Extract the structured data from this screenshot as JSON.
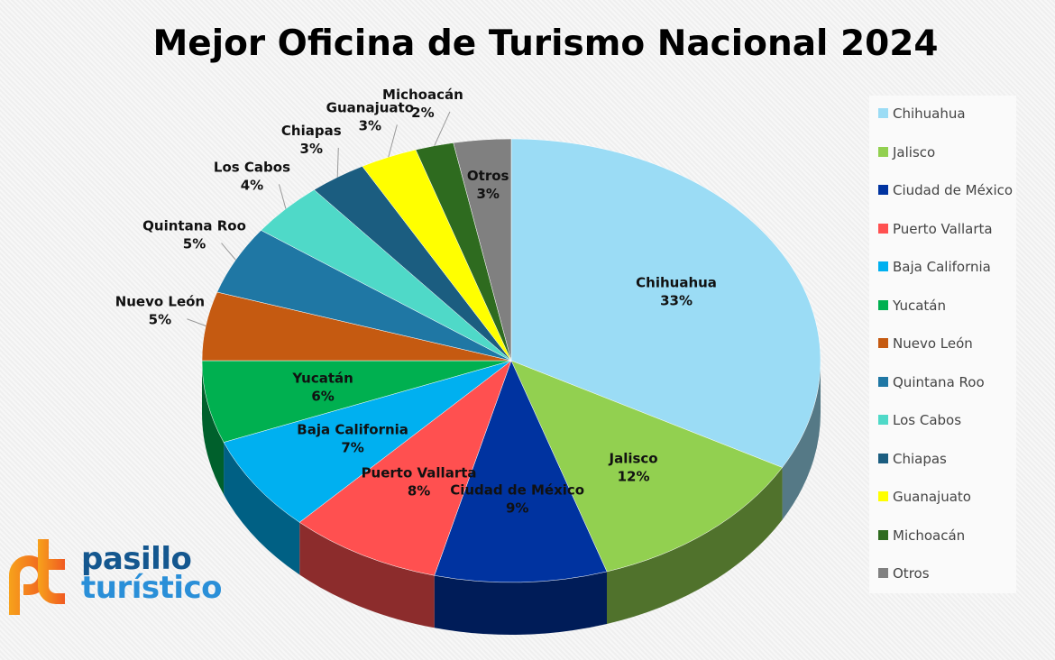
{
  "chart_data": {
    "type": "pie",
    "title": "Mejor Oficina de Turismo Nacional 2024",
    "categories": [
      "Chihuahua",
      "Jalisco",
      "Ciudad de México",
      "Puerto Vallarta",
      "Baja California",
      "Yucatán",
      "Nuevo León",
      "Quintana Roo",
      "Los Cabos",
      "Chiapas",
      "Guanajuato",
      "Michoacán",
      "Otros"
    ],
    "values": [
      33,
      12,
      9,
      8,
      7,
      6,
      5,
      5,
      4,
      3,
      3,
      2,
      3
    ],
    "labels": [
      "33%",
      "12%",
      "9%",
      "8%",
      "7%",
      "6%",
      "5%",
      "5%",
      "4%",
      "3%",
      "3%",
      "2%",
      "3%"
    ],
    "colors": [
      "#9bdcf5",
      "#92d050",
      "#0033a0",
      "#ff5050",
      "#00b0f0",
      "#00b050",
      "#c55a11",
      "#1f77a4",
      "#4fd9c8",
      "#1b5d80",
      "#ffff00",
      "#2e6b1f",
      "#808080"
    ],
    "legend_position": "right"
  },
  "logo": {
    "line1": "pasillo",
    "line2": "turístico"
  }
}
